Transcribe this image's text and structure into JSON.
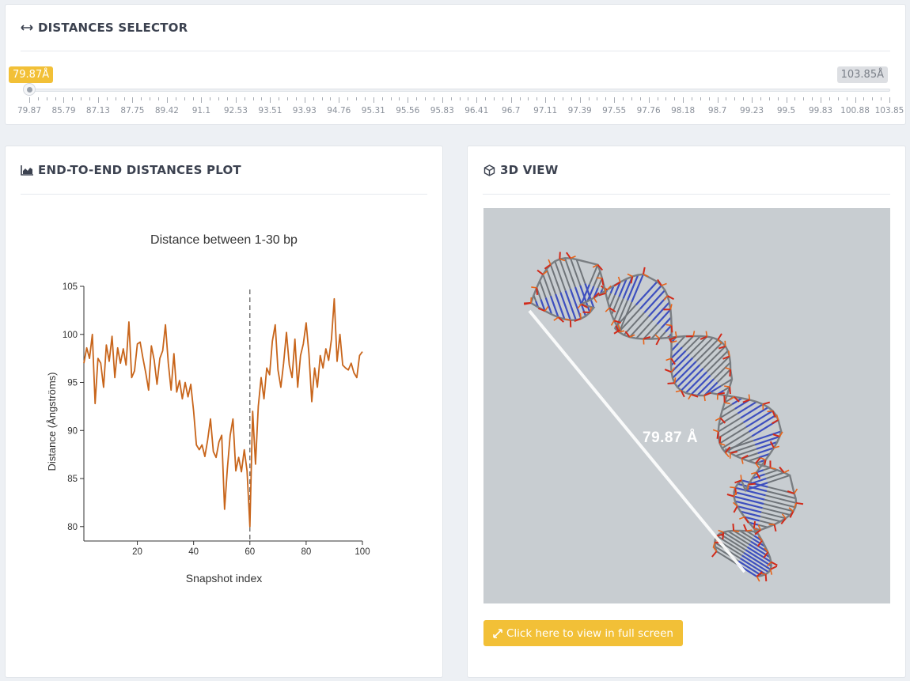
{
  "selector": {
    "title": "DISTANCES SELECTOR",
    "current_label": "79.87Å",
    "max_label": "103.85Å",
    "value": 79.87,
    "min": 79.87,
    "max": 103.85,
    "tick_labels": [
      "79.87",
      "85.79",
      "87.13",
      "87.75",
      "89.42",
      "91.1",
      "92.53",
      "93.51",
      "93.93",
      "94.76",
      "95.31",
      "95.56",
      "95.83",
      "96.41",
      "96.7",
      "97.11",
      "97.39",
      "97.55",
      "97.76",
      "98.18",
      "98.7",
      "99.23",
      "99.5",
      "99.83",
      "100.88",
      "103.85"
    ]
  },
  "plot_card": {
    "title": "END-TO-END DISTANCES PLOT"
  },
  "chart_data": {
    "type": "line",
    "title": "Distance between 1-30 bp",
    "xlabel": "Snapshot index",
    "ylabel": "Distance (Ångströms)",
    "xlim": [
      1,
      100
    ],
    "ylim": [
      78.5,
      105
    ],
    "xticks": [
      20,
      40,
      60,
      80,
      100
    ],
    "yticks": [
      80,
      85,
      90,
      95,
      100,
      105
    ],
    "marker_x": 60,
    "line_color": "#c8651b",
    "series": [
      {
        "values": [
          97.0,
          98.6,
          97.5,
          100.0,
          92.8,
          97.5,
          97.0,
          94.5,
          98.9,
          97.2,
          99.8,
          95.5,
          98.6,
          97.0,
          98.5,
          96.8,
          101.3,
          95.5,
          96.2,
          99.0,
          99.2,
          97.5,
          96.0,
          94.2,
          98.8,
          97.3,
          94.8,
          97.5,
          98.3,
          101.0,
          97.0,
          94.2,
          98.0,
          94.0,
          95.2,
          93.3,
          95.0,
          93.5,
          94.8,
          92.0,
          88.5,
          88.0,
          88.5,
          87.3,
          89.0,
          91.2,
          87.8,
          87.2,
          88.8,
          89.5,
          81.8,
          86.0,
          89.5,
          91.2,
          85.8,
          87.2,
          85.7,
          88.0,
          85.8,
          80.0,
          92.0,
          86.5,
          92.5,
          95.5,
          93.3,
          96.5,
          95.8,
          99.3,
          101.0,
          96.3,
          94.5,
          97.0,
          100.2,
          96.8,
          95.5,
          99.5,
          94.5,
          97.8,
          99.0,
          101.2,
          98.0,
          93.0,
          96.5,
          94.5,
          97.8,
          96.5,
          98.5,
          97.3,
          99.5,
          103.7,
          97.2,
          100.0,
          96.8,
          96.5,
          96.3,
          97.0,
          96.0,
          95.5,
          97.8,
          98.2
        ]
      }
    ]
  },
  "viewer_card": {
    "title": "3D VIEW",
    "distance_label": "79.87 Å",
    "fullscreen_label": "Click here to view in full screen"
  }
}
